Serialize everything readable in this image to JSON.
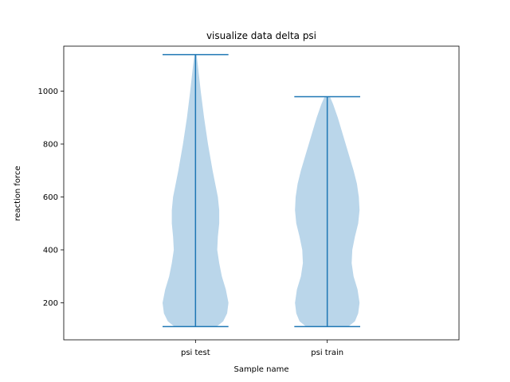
{
  "chart_data": {
    "type": "violin",
    "title": "visualize data delta psi",
    "xlabel": "Sample name",
    "ylabel": "reaction force",
    "categories": [
      "psi test",
      "psi train"
    ],
    "ylim": [
      60,
      1170
    ],
    "yticks": [
      200,
      400,
      600,
      800,
      1000
    ],
    "grid": false,
    "legend": "none",
    "colors": {
      "body": "#bad6ea",
      "line": "#1f77b4"
    },
    "series": [
      {
        "min": 110,
        "max": 1138,
        "density": [
          [
            110,
            0.32
          ],
          [
            130,
            0.42
          ],
          [
            160,
            0.48
          ],
          [
            200,
            0.5
          ],
          [
            250,
            0.46
          ],
          [
            300,
            0.4
          ],
          [
            350,
            0.36
          ],
          [
            400,
            0.33
          ],
          [
            450,
            0.34
          ],
          [
            500,
            0.36
          ],
          [
            550,
            0.36
          ],
          [
            600,
            0.34
          ],
          [
            650,
            0.3
          ],
          [
            700,
            0.26
          ],
          [
            800,
            0.19
          ],
          [
            900,
            0.13
          ],
          [
            1000,
            0.08
          ],
          [
            1100,
            0.035
          ],
          [
            1138,
            0.015
          ]
        ]
      },
      {
        "min": 110,
        "max": 979,
        "density": [
          [
            110,
            0.32
          ],
          [
            130,
            0.42
          ],
          [
            160,
            0.47
          ],
          [
            200,
            0.49
          ],
          [
            250,
            0.46
          ],
          [
            300,
            0.4
          ],
          [
            350,
            0.37
          ],
          [
            400,
            0.38
          ],
          [
            450,
            0.42
          ],
          [
            500,
            0.47
          ],
          [
            550,
            0.49
          ],
          [
            600,
            0.48
          ],
          [
            650,
            0.45
          ],
          [
            700,
            0.4
          ],
          [
            800,
            0.28
          ],
          [
            900,
            0.16
          ],
          [
            950,
            0.09
          ],
          [
            979,
            0.04
          ]
        ]
      }
    ]
  }
}
